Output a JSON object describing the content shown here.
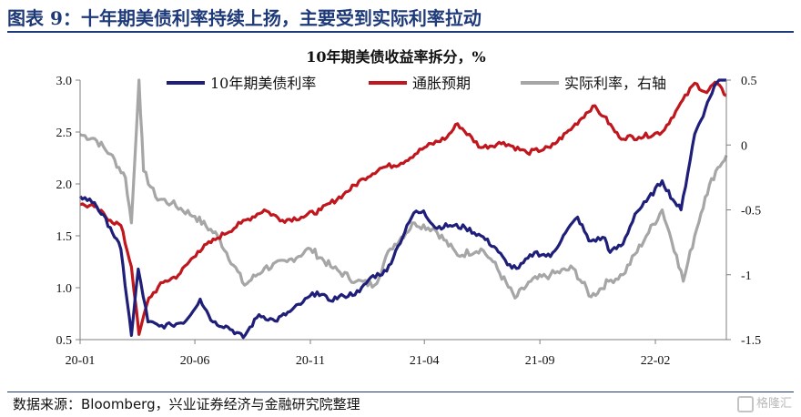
{
  "figure_title": "图表 9：十年期美债利率持续上扬，主要受到实际利率拉动",
  "source_note": "数据来源：Bloomberg，兴业证券经济与金融研究院整理",
  "watermark": "格隆汇",
  "chart_data": {
    "type": "line",
    "title": "10年期美债收益率拆分，%",
    "x_ticks": [
      "20-01",
      "20-06",
      "20-11",
      "21-04",
      "21-09",
      "22-02"
    ],
    "x_range": [
      "2020-01-01",
      "2022-05-06"
    ],
    "y_left": {
      "range": [
        0.5,
        3.0
      ],
      "ticks": [
        "0.5",
        "1.0",
        "1.5",
        "2.0",
        "2.5",
        "3.0"
      ]
    },
    "y_right": {
      "range": [
        -1.5,
        0.5
      ],
      "ticks": [
        "-1.5",
        "-1",
        "-0.5",
        "0",
        "0.5"
      ]
    },
    "legend_position": "top",
    "grid": false,
    "series": [
      {
        "name": "10年期美债利率",
        "color": "#1f1f7a",
        "axis": "left",
        "points": [
          [
            "2020-01-01",
            1.88
          ],
          [
            "2020-01-20",
            1.82
          ],
          [
            "2020-02-10",
            1.58
          ],
          [
            "2020-02-24",
            1.37
          ],
          [
            "2020-03-09",
            0.54
          ],
          [
            "2020-03-18",
            1.18
          ],
          [
            "2020-03-31",
            0.67
          ],
          [
            "2020-04-15",
            0.63
          ],
          [
            "2020-05-01",
            0.64
          ],
          [
            "2020-05-20",
            0.68
          ],
          [
            "2020-06-08",
            0.89
          ],
          [
            "2020-06-25",
            0.67
          ],
          [
            "2020-07-15",
            0.62
          ],
          [
            "2020-08-04",
            0.52
          ],
          [
            "2020-08-25",
            0.74
          ],
          [
            "2020-09-15",
            0.68
          ],
          [
            "2020-10-05",
            0.77
          ],
          [
            "2020-10-22",
            0.86
          ],
          [
            "2020-11-10",
            0.96
          ],
          [
            "2020-11-25",
            0.88
          ],
          [
            "2020-12-15",
            0.92
          ],
          [
            "2021-01-05",
            0.96
          ],
          [
            "2021-01-20",
            1.1
          ],
          [
            "2021-02-10",
            1.16
          ],
          [
            "2021-02-25",
            1.4
          ],
          [
            "2021-03-18",
            1.72
          ],
          [
            "2021-03-31",
            1.74
          ],
          [
            "2021-04-15",
            1.58
          ],
          [
            "2021-05-05",
            1.6
          ],
          [
            "2021-05-25",
            1.58
          ],
          [
            "2021-06-15",
            1.5
          ],
          [
            "2021-07-05",
            1.38
          ],
          [
            "2021-07-20",
            1.22
          ],
          [
            "2021-08-04",
            1.19
          ],
          [
            "2021-08-25",
            1.34
          ],
          [
            "2021-09-15",
            1.3
          ],
          [
            "2021-10-05",
            1.53
          ],
          [
            "2021-10-21",
            1.68
          ],
          [
            "2021-11-05",
            1.45
          ],
          [
            "2021-11-26",
            1.48
          ],
          [
            "2021-12-03",
            1.34
          ],
          [
            "2021-12-20",
            1.42
          ],
          [
            "2022-01-05",
            1.71
          ],
          [
            "2022-01-20",
            1.83
          ],
          [
            "2022-02-10",
            2.03
          ],
          [
            "2022-02-24",
            1.85
          ],
          [
            "2022-03-07",
            1.75
          ],
          [
            "2022-03-25",
            2.48
          ],
          [
            "2022-04-08",
            2.72
          ],
          [
            "2022-04-20",
            2.94
          ],
          [
            "2022-05-06",
            3.1
          ]
        ]
      },
      {
        "name": "通胀预期",
        "color": "#c0161d",
        "axis": "left",
        "points": [
          [
            "2020-01-01",
            1.8
          ],
          [
            "2020-01-20",
            1.78
          ],
          [
            "2020-02-10",
            1.65
          ],
          [
            "2020-02-24",
            1.6
          ],
          [
            "2020-03-09",
            1.2
          ],
          [
            "2020-03-19",
            0.55
          ],
          [
            "2020-04-01",
            0.9
          ],
          [
            "2020-04-20",
            1.05
          ],
          [
            "2020-05-10",
            1.12
          ],
          [
            "2020-06-05",
            1.35
          ],
          [
            "2020-07-01",
            1.48
          ],
          [
            "2020-08-01",
            1.62
          ],
          [
            "2020-09-01",
            1.75
          ],
          [
            "2020-09-25",
            1.65
          ],
          [
            "2020-10-20",
            1.68
          ],
          [
            "2020-11-15",
            1.75
          ],
          [
            "2020-12-15",
            1.9
          ],
          [
            "2021-01-10",
            2.05
          ],
          [
            "2021-02-01",
            2.15
          ],
          [
            "2021-03-01",
            2.2
          ],
          [
            "2021-04-01",
            2.35
          ],
          [
            "2021-05-01",
            2.45
          ],
          [
            "2021-05-15",
            2.58
          ],
          [
            "2021-06-15",
            2.35
          ],
          [
            "2021-07-15",
            2.4
          ],
          [
            "2021-08-15",
            2.3
          ],
          [
            "2021-09-15",
            2.35
          ],
          [
            "2021-10-15",
            2.55
          ],
          [
            "2021-11-10",
            2.75
          ],
          [
            "2021-11-25",
            2.65
          ],
          [
            "2021-12-15",
            2.45
          ],
          [
            "2022-01-10",
            2.45
          ],
          [
            "2022-02-10",
            2.5
          ],
          [
            "2022-02-28",
            2.7
          ],
          [
            "2022-03-25",
            2.97
          ],
          [
            "2022-04-10",
            2.88
          ],
          [
            "2022-04-21",
            2.98
          ],
          [
            "2022-05-06",
            2.85
          ]
        ]
      },
      {
        "name": "实际利率，右轴",
        "color": "#a6a6a6",
        "axis": "right",
        "points": [
          [
            "2020-01-01",
            0.08
          ],
          [
            "2020-01-20",
            0.05
          ],
          [
            "2020-02-10",
            -0.07
          ],
          [
            "2020-03-01",
            -0.25
          ],
          [
            "2020-03-09",
            -0.6
          ],
          [
            "2020-03-19",
            0.5
          ],
          [
            "2020-03-25",
            -0.2
          ],
          [
            "2020-04-10",
            -0.4
          ],
          [
            "2020-05-01",
            -0.45
          ],
          [
            "2020-06-01",
            -0.55
          ],
          [
            "2020-07-01",
            -0.7
          ],
          [
            "2020-08-06",
            -1.08
          ],
          [
            "2020-09-01",
            -0.95
          ],
          [
            "2020-10-01",
            -0.9
          ],
          [
            "2020-11-01",
            -0.8
          ],
          [
            "2020-12-01",
            -0.95
          ],
          [
            "2021-01-01",
            -1.05
          ],
          [
            "2021-01-25",
            -1.08
          ],
          [
            "2021-02-15",
            -0.8
          ],
          [
            "2021-03-19",
            -0.6
          ],
          [
            "2021-04-15",
            -0.65
          ],
          [
            "2021-05-15",
            -0.85
          ],
          [
            "2021-06-15",
            -0.8
          ],
          [
            "2021-07-01",
            -0.9
          ],
          [
            "2021-07-30",
            -1.18
          ],
          [
            "2021-08-20",
            -1.05
          ],
          [
            "2021-09-15",
            -1.0
          ],
          [
            "2021-10-15",
            -0.95
          ],
          [
            "2021-11-08",
            -1.17
          ],
          [
            "2021-12-01",
            -1.05
          ],
          [
            "2021-12-20",
            -1.0
          ],
          [
            "2022-01-20",
            -0.7
          ],
          [
            "2022-02-10",
            -0.5
          ],
          [
            "2022-03-01",
            -0.85
          ],
          [
            "2022-03-10",
            -1.05
          ],
          [
            "2022-03-25",
            -0.7
          ],
          [
            "2022-04-08",
            -0.4
          ],
          [
            "2022-04-22",
            -0.2
          ],
          [
            "2022-05-06",
            -0.08
          ]
        ]
      }
    ]
  }
}
